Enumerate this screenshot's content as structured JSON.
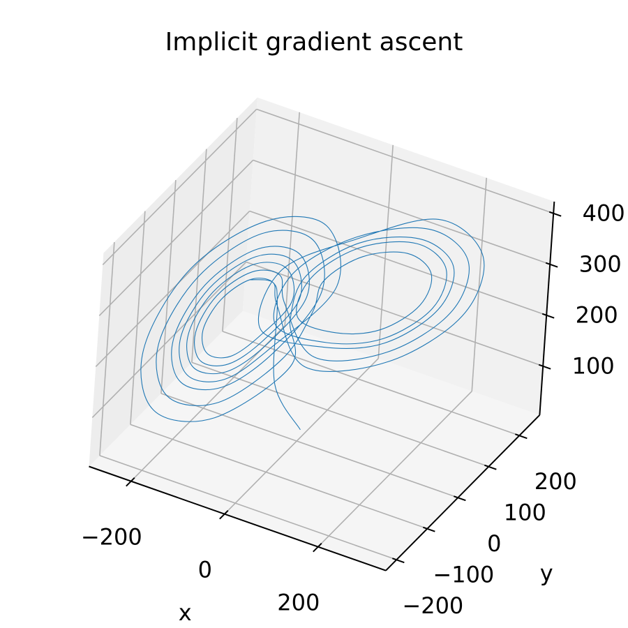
{
  "chart_data": {
    "type": "line3d",
    "title": "Implicit gradient ascent",
    "xlabel": "x",
    "ylabel": "y",
    "color": "#1f77b4",
    "xlim": [
      -290,
      345
    ],
    "ylim": [
      -235,
      266
    ],
    "zlim": [
      4,
      423
    ],
    "xticks": [
      {
        "value": -200,
        "label": "−200"
      },
      0,
      200
    ],
    "yticks": [
      {
        "value": -200,
        "label": "−200"
      },
      {
        "value": -100,
        "label": "−100"
      },
      0,
      100,
      200
    ],
    "zticks": [
      100,
      200,
      300,
      400
    ],
    "grid": true,
    "x": [
      0,
      -30,
      -45,
      -57,
      -85,
      -113,
      -125,
      -113,
      -85,
      -57,
      -29,
      -45,
      -85,
      -125,
      -141,
      -125,
      -85,
      -45,
      -13,
      -34,
      -85,
      -136,
      -157,
      -136,
      -85,
      -34,
      3,
      -23,
      -85,
      -147,
      -173,
      -147,
      -85,
      -23,
      21,
      40,
      85,
      130,
      149,
      130,
      85,
      40,
      5,
      28,
      85,
      142,
      165,
      142,
      85,
      28,
      -19,
      11,
      85,
      159,
      189,
      159,
      85,
      11,
      -37,
      -51,
      -85,
      -119,
      -133,
      -119,
      -85,
      -51,
      -21,
      -40,
      -85,
      -130,
      -149,
      -130,
      -85,
      -40,
      19,
      -11,
      -85,
      -159,
      -189,
      -159,
      -85,
      -11,
      -3,
      23,
      85,
      147,
      173,
      147,
      85,
      23,
      -35,
      0,
      85,
      170,
      205,
      170,
      85,
      0,
      -45,
      -57,
      -85
    ],
    "y": [
      10,
      -40,
      -25,
      -25,
      -60,
      -110,
      -145,
      -145,
      -110,
      -60,
      -1,
      -1,
      -50,
      -120,
      -169,
      -169,
      -120,
      -50,
      23,
      23,
      -40,
      -130,
      -193,
      -193,
      -130,
      -40,
      47,
      47,
      -30,
      -139,
      -217,
      -217,
      -140,
      -31,
      -11,
      -11,
      45,
      125,
      181,
      181,
      125,
      45,
      -35,
      -35,
      35,
      135,
      205,
      205,
      135,
      35,
      -71,
      -71,
      20,
      149,
      241,
      241,
      150,
      21,
      -13,
      -13,
      -55,
      -115,
      -157,
      -157,
      -115,
      -55,
      11,
      11,
      -45,
      -125,
      -181,
      -181,
      -125,
      -45,
      71,
      71,
      -20,
      -149,
      -241,
      -241,
      -150,
      -21,
      -47,
      -47,
      30,
      139,
      217,
      217,
      140,
      31,
      -95,
      -95,
      10,
      159,
      265,
      265,
      160,
      11,
      -25,
      -25,
      -60
    ],
    "z": [
      20,
      130,
      270,
      312,
      330,
      312,
      270,
      228,
      210,
      228,
      270,
      329,
      354,
      329,
      270,
      211,
      186,
      211,
      270,
      346,
      378,
      346,
      270,
      194,
      162,
      194,
      270,
      363,
      402,
      363,
      270,
      177,
      138,
      177,
      270,
      338,
      366,
      338,
      270,
      202,
      174,
      202,
      270,
      355,
      390,
      355,
      270,
      185,
      150,
      185,
      270,
      380,
      420,
      380,
      270,
      160,
      114,
      160,
      270,
      321,
      342,
      321,
      270,
      219,
      198,
      219,
      270,
      338,
      366,
      338,
      270,
      202,
      174,
      202,
      270,
      380,
      420,
      380,
      270,
      160,
      114,
      160,
      270,
      363,
      402,
      363,
      270,
      177,
      138,
      177,
      270,
      397,
      420,
      397,
      270,
      143,
      90,
      143,
      270,
      312,
      330
    ]
  }
}
